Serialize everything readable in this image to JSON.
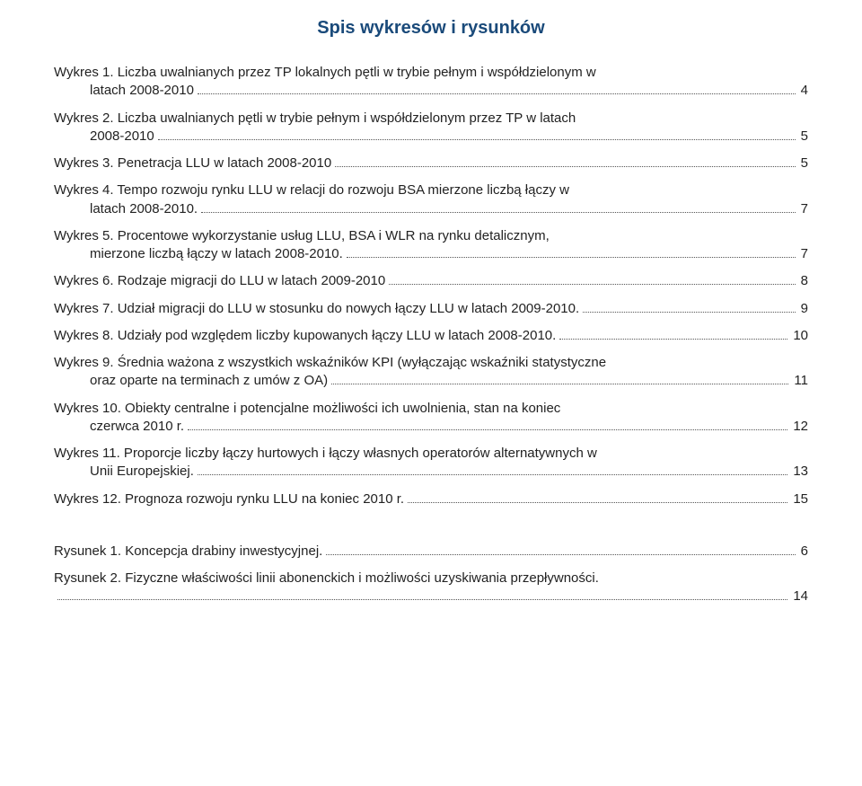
{
  "title": "Spis wykresów i rysunków",
  "title_color": "#1a4a7a",
  "text_color": "#222222",
  "background": "#ffffff",
  "entries": [
    {
      "lead": "Wykres 1. Liczba uwalnianych przez TP lokalnych pętli w trybie pełnym i współdzielonym w",
      "tail": "latach 2008-2010",
      "page": "4",
      "indentTail": true
    },
    {
      "lead": "Wykres 2. Liczba uwalnianych pętli w trybie pełnym i współdzielonym przez TP w latach",
      "tail": "2008-2010",
      "page": "5",
      "indentTail": true
    },
    {
      "lead": "",
      "tail": "Wykres 3. Penetracja LLU w latach 2008-2010",
      "page": "5",
      "indentTail": false
    },
    {
      "lead": "Wykres 4. Tempo rozwoju rynku LLU w relacji do rozwoju BSA mierzone liczbą łączy w",
      "tail": "latach 2008-2010.",
      "page": "7",
      "indentTail": true
    },
    {
      "lead": "Wykres 5. Procentowe wykorzystanie usług LLU, BSA i WLR na rynku detalicznym,",
      "tail": "mierzone liczbą łączy w latach 2008-2010.",
      "page": "7",
      "indentTail": true
    },
    {
      "lead": "",
      "tail": "Wykres 6. Rodzaje migracji do LLU w latach 2009-2010",
      "page": "8",
      "indentTail": false
    },
    {
      "lead": "",
      "tail": "Wykres 7. Udział migracji do LLU w stosunku do nowych łączy LLU w latach 2009-2010.",
      "page": "9",
      "indentTail": false
    },
    {
      "lead": "",
      "tail": "Wykres 8. Udziały pod względem liczby kupowanych łączy LLU w latach 2008-2010.",
      "page": "10",
      "indentTail": false
    },
    {
      "lead": "Wykres 9. Średnia ważona z wszystkich wskaźników KPI (wyłączając wskaźniki statystyczne",
      "tail": "oraz oparte na terminach z umów z OA)",
      "page": "11",
      "indentTail": true
    },
    {
      "lead": "Wykres 10. Obiekty centralne i potencjalne możliwości ich uwolnienia, stan na koniec",
      "tail": "czerwca 2010 r.",
      "page": "12",
      "indentTail": true
    },
    {
      "lead": "Wykres 11. Proporcje liczby łączy hurtowych i łączy własnych operatorów alternatywnych w",
      "tail": "Unii Europejskiej.",
      "page": "13",
      "indentTail": true
    },
    {
      "lead": "",
      "tail": "Wykres 12. Prognoza rozwoju rynku LLU na koniec 2010 r.",
      "page": "15",
      "indentTail": false
    }
  ],
  "entries2": [
    {
      "lead": "",
      "tail": "Rysunek 1. Koncepcja drabiny inwestycyjnej.",
      "page": "6",
      "indentTail": false
    },
    {
      "lead": "Rysunek 2. Fizyczne właściwości linii abonenckich i możliwości uzyskiwania przepływności.",
      "tail": "",
      "page": "14",
      "indentTail": false
    }
  ]
}
